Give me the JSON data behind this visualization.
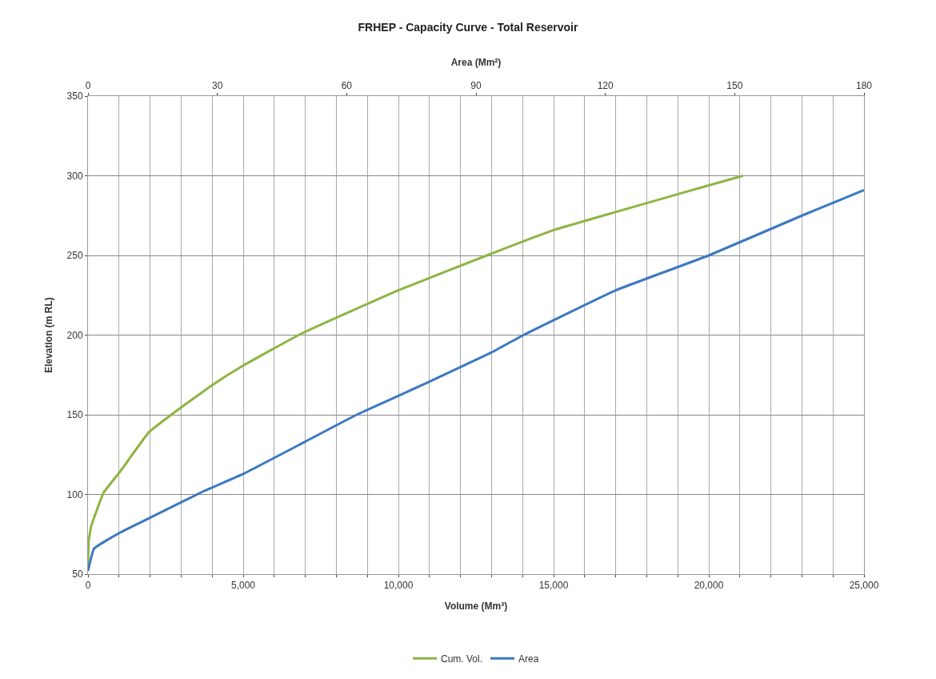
{
  "chart_data": {
    "type": "line",
    "title": "FRHEP - Capacity Curve - Total Reservoir",
    "xlabel": "Volume (Mm³)",
    "ylabel": "Elevation (m RL)",
    "x2label": "Area (Mm²)",
    "xlim": [
      0,
      25000
    ],
    "xticks": [
      0,
      {
        "value": 1000,
        "label": null
      },
      {
        "value": 2000,
        "label": null
      },
      {
        "value": 3000,
        "label": null
      },
      {
        "value": 4000,
        "label": null
      },
      {
        "value": 5000,
        "label": "5,000"
      },
      {
        "value": 6000,
        "label": null
      },
      {
        "value": 7000,
        "label": null
      },
      {
        "value": 8000,
        "label": null
      },
      {
        "value": 9000,
        "label": null
      },
      {
        "value": 10000,
        "label": "10,000"
      },
      {
        "value": 11000,
        "label": null
      },
      {
        "value": 12000,
        "label": null
      },
      {
        "value": 13000,
        "label": null
      },
      {
        "value": 14000,
        "label": null
      },
      {
        "value": 15000,
        "label": "15,000"
      },
      {
        "value": 16000,
        "label": null
      },
      {
        "value": 17000,
        "label": null
      },
      {
        "value": 18000,
        "label": null
      },
      {
        "value": 19000,
        "label": null
      },
      {
        "value": 20000,
        "label": "20,000"
      },
      {
        "value": 21000,
        "label": null
      },
      {
        "value": 22000,
        "label": null
      },
      {
        "value": 23000,
        "label": null
      },
      {
        "value": 24000,
        "label": null
      },
      {
        "value": 25000,
        "label": "25,000"
      }
    ],
    "x2lim": [
      0,
      180
    ],
    "x2ticks": [
      0,
      30,
      60,
      90,
      120,
      150,
      180
    ],
    "ylim": [
      50,
      350
    ],
    "yticks": [
      50,
      100,
      150,
      200,
      250,
      300,
      350
    ],
    "grid": true,
    "legend": "bottom",
    "line_style": "solid",
    "series": [
      {
        "name": "Cum. Vol.",
        "color": "#8db543",
        "x": [
          0,
          20,
          100,
          500,
          1020,
          1960,
          2750,
          4030,
          5010,
          6880,
          9980,
          12980,
          15020,
          18030,
          20000,
          21100
        ],
        "values": [
          55,
          70,
          80,
          101,
          114,
          139,
          151,
          169,
          181,
          201,
          228,
          251,
          266,
          283,
          294,
          300
        ]
      },
      {
        "name": "Area",
        "color": "#3c78c0",
        "axis": "x2",
        "x": [
          0,
          1.4,
          7.4,
          14.1,
          26.8,
          36.1,
          50.3,
          62.3,
          78.6,
          93.5,
          101,
          122.3,
          144,
          165.6,
          180
        ],
        "values": [
          52,
          66,
          76,
          85,
          102,
          113,
          133,
          150,
          170,
          189,
          200,
          228,
          250,
          275,
          291
        ]
      }
    ]
  }
}
